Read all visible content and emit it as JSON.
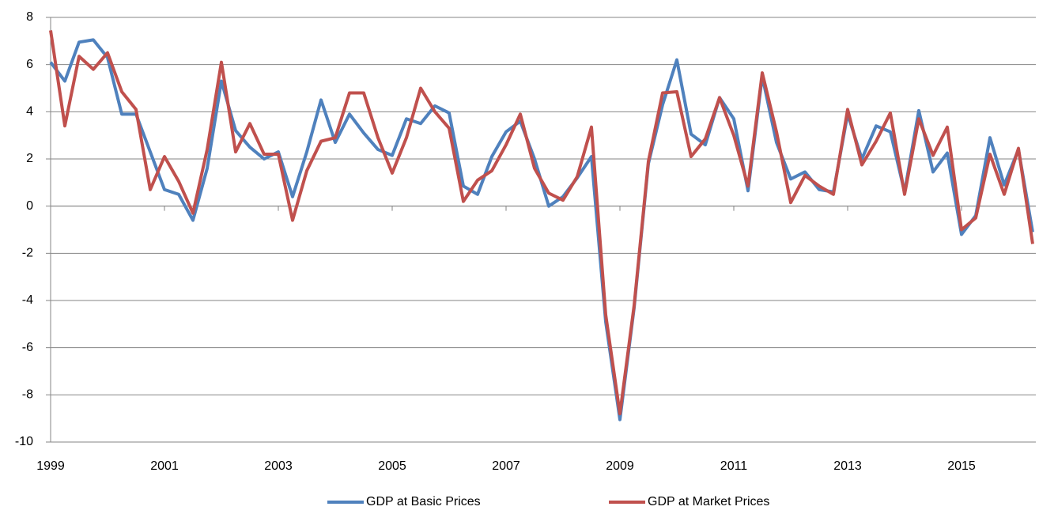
{
  "chart_data": {
    "type": "line",
    "x": [
      "1999",
      null,
      null,
      null,
      null,
      null,
      null,
      null,
      "2001",
      null,
      null,
      null,
      null,
      null,
      null,
      null,
      "2003",
      null,
      null,
      null,
      null,
      null,
      null,
      null,
      "2005",
      null,
      null,
      null,
      null,
      null,
      null,
      null,
      "2007",
      null,
      null,
      null,
      null,
      null,
      null,
      null,
      "2009",
      null,
      null,
      null,
      null,
      null,
      null,
      null,
      "2011",
      null,
      null,
      null,
      null,
      null,
      null,
      null,
      "2013",
      null,
      null,
      null,
      null,
      null,
      null,
      null,
      "2015",
      null,
      null,
      null,
      null,
      null
    ],
    "series": [
      {
        "name": "GDP at Basic Prices",
        "color": "#4f81bd",
        "values": [
          6.1,
          5.3,
          6.95,
          7.05,
          6.3,
          3.9,
          3.9,
          2.3,
          0.7,
          0.5,
          -0.6,
          1.6,
          5.3,
          3.2,
          2.5,
          2.0,
          2.3,
          0.4,
          2.3,
          4.5,
          2.7,
          3.9,
          3.1,
          2.4,
          2.15,
          3.7,
          3.5,
          4.25,
          3.95,
          0.85,
          0.5,
          2.1,
          3.15,
          3.6,
          2.0,
          0.0,
          0.4,
          1.2,
          2.1,
          -4.9,
          -9.05,
          -4.3,
          1.8,
          4.3,
          6.2,
          3.05,
          2.6,
          4.6,
          3.7,
          0.65,
          5.5,
          2.7,
          1.15,
          1.45,
          0.7,
          0.6,
          3.9,
          2.0,
          3.4,
          3.15,
          0.6,
          4.05,
          1.45,
          2.25,
          -1.2,
          -0.4,
          2.9,
          0.9,
          2.4,
          -1.1
        ]
      },
      {
        "name": "GDP at Market Prices",
        "color": "#c0504d",
        "values": [
          7.45,
          3.4,
          6.35,
          5.8,
          6.5,
          4.85,
          4.1,
          0.7,
          2.1,
          1.05,
          -0.3,
          2.4,
          6.1,
          2.3,
          3.5,
          2.2,
          2.2,
          -0.6,
          1.5,
          2.75,
          2.9,
          4.8,
          4.8,
          2.9,
          1.4,
          2.9,
          5.0,
          4.0,
          3.3,
          0.2,
          1.1,
          1.5,
          2.6,
          3.9,
          1.6,
          0.55,
          0.25,
          1.25,
          3.35,
          -4.6,
          -8.8,
          -4.2,
          1.9,
          4.8,
          4.85,
          2.1,
          2.85,
          4.6,
          3.0,
          0.85,
          5.65,
          3.15,
          0.15,
          1.3,
          0.85,
          0.5,
          4.1,
          1.75,
          2.75,
          3.95,
          0.5,
          3.7,
          2.15,
          3.35,
          -1.0,
          -0.5,
          2.2,
          0.5,
          2.45,
          -1.6
        ]
      }
    ],
    "ylim": [
      -10,
      8
    ],
    "yticks": [
      -10,
      -8,
      -6,
      -4,
      -2,
      0,
      2,
      4,
      6,
      8
    ],
    "grid": true,
    "legend": "bottom"
  }
}
